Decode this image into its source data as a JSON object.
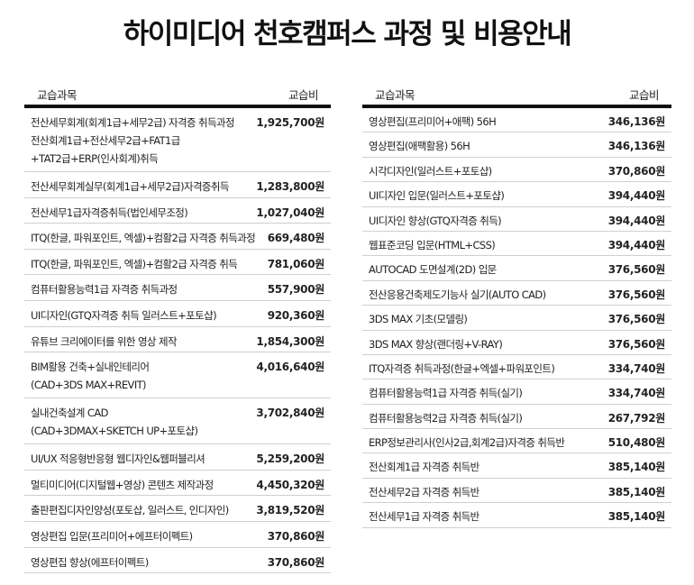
{
  "title": "하이미디어  천호캠퍼스 과정 및 비용안내",
  "left_table": {
    "headers": {
      "course": "교습과목",
      "fee": "교습비"
    },
    "rows": [
      {
        "name": [
          "전산세무회계(회계1급+세무2급) 자격증 취득과정",
          "전산회계1급+전산세무2급+FAT1급",
          "+TAT2급+ERP(인사회계)취득"
        ],
        "fee": "1,925,700원"
      },
      {
        "name": [
          "전산세무회계실무(회계1급+세무2급)자격증취득"
        ],
        "fee": "1,283,800원"
      },
      {
        "name": [
          "전산세무1급자격증취득(법인세무조정)"
        ],
        "fee": "1,027,040원"
      },
      {
        "name": [
          "ITQ(한글, 파워포인트, 엑셀)+컴활2급 자격증 취득과정"
        ],
        "fee": "669,480원"
      },
      {
        "name": [
          "ITQ(한글, 파워포인트, 엑셀)+컴활2급 자격증 취득"
        ],
        "fee": "781,060원"
      },
      {
        "name": [
          "컴퓨터활용능력1급 자격증 취득과정"
        ],
        "fee": "557,900원"
      },
      {
        "name": [
          "UI디자인(GTQ자격증 취득 일러스트+포토샵)"
        ],
        "fee": "920,360원"
      },
      {
        "name": [
          "유튜브 크리에이터를 위한 영상 제작"
        ],
        "fee": "1,854,300원"
      },
      {
        "name": [
          "BIM활용 건축+실내인테리어",
          "(CAD+3DS MAX+REVIT)"
        ],
        "fee": "4,016,640원"
      },
      {
        "name": [
          "실내건축설계 CAD",
          "(CAD+3DMAX+SKETCH UP+포토샵)"
        ],
        "fee": "3,702,840원"
      },
      {
        "name": [
          "UI/UX 적응형반응형 웹디자인&웹퍼블리셔"
        ],
        "fee": "5,259,200원"
      },
      {
        "name": [
          "멀티미디어(디지털웹+영상) 콘텐츠 제작과정"
        ],
        "fee": "4,450,320원"
      },
      {
        "name": [
          "출판편집디자인양성(포토샵, 일러스트, 인디자인)"
        ],
        "fee": "3,819,520원"
      },
      {
        "name": [
          "영상편집 입문(프리미어+에프터이펙트)"
        ],
        "fee": "370,860원"
      },
      {
        "name": [
          "영상편집 향상(에프터이펙트)"
        ],
        "fee": "370,860원"
      }
    ]
  },
  "right_table": {
    "headers": {
      "course": "교습과목",
      "fee": "교습비"
    },
    "rows": [
      {
        "name": "영상편집(프리미어+애팩) 56H",
        "fee": "346,136원"
      },
      {
        "name": "영상편집(애팩활용) 56H",
        "fee": "346,136원"
      },
      {
        "name": "시각디자인(일러스트+포토샵)",
        "fee": "370,860원"
      },
      {
        "name": "UI디자인 입문(일러스트+포토샵)",
        "fee": "394,440원"
      },
      {
        "name": "UI디자인 향상(GTQ자격증 취득)",
        "fee": "394,440원"
      },
      {
        "name": "웹표준코딩 입문(HTML+CSS)",
        "fee": "394,440원"
      },
      {
        "name": "AUTOCAD 도면설계(2D) 입문",
        "fee": "376,560원"
      },
      {
        "name": "전산응용건축제도기능사 실기(AUTO CAD)",
        "fee": "376,560원"
      },
      {
        "name": "3DS MAX 기초(모델링)",
        "fee": "376,560원"
      },
      {
        "name": "3DS MAX 향상(랜더링+V-RAY)",
        "fee": "376,560원"
      },
      {
        "name": "ITQ자격증 취득과정(한글+엑셀+파워포인트)",
        "fee": "334,740원"
      },
      {
        "name": "컴퓨터활용능력1급 자격증 취득(실기)",
        "fee": "334,740원"
      },
      {
        "name": "컴퓨터활용능력2급 자격증 취득(실기)",
        "fee": "267,792원"
      },
      {
        "name": "ERP정보관리사(인사2급,회계2급)자격증 취득반",
        "fee": "510,480원"
      },
      {
        "name": "전산회계1급 자격증 취득반",
        "fee": "385,140원"
      },
      {
        "name": "전산세무2급 자격증 취득반",
        "fee": "385,140원"
      },
      {
        "name": "전산세무1급 자격증 취득반",
        "fee": "385,140원"
      }
    ]
  }
}
